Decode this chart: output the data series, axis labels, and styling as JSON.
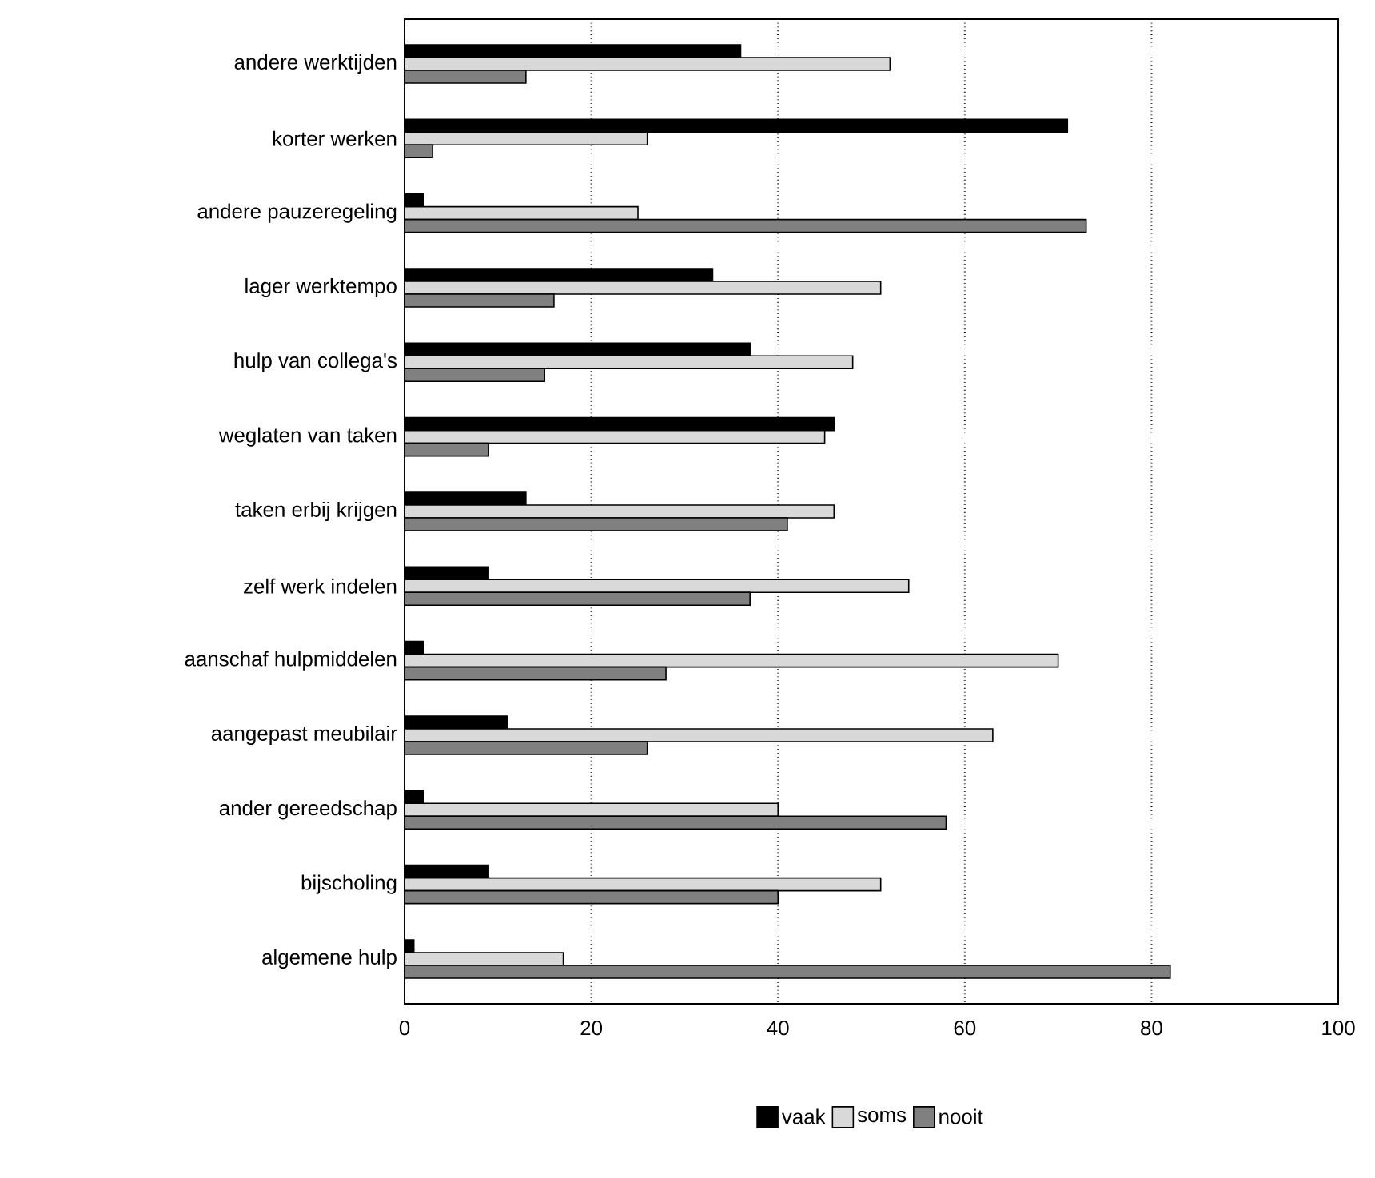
{
  "chart_data": {
    "type": "bar",
    "orientation": "horizontal",
    "categories": [
      "andere werktijden",
      "korter werken",
      "andere pauzeregeling",
      "lager werktempo",
      "hulp van collega's",
      "weglaten van taken",
      "taken erbij krijgen",
      "zelf werk indelen",
      "aanschaf hulpmiddelen",
      "aangepast meubilair",
      "ander gereedschap",
      "bijscholing",
      "algemene hulp"
    ],
    "series": [
      {
        "name": "vaak",
        "color": "#000000",
        "values": [
          36,
          71,
          2,
          33,
          37,
          46,
          13,
          9,
          2,
          11,
          2,
          9,
          1
        ]
      },
      {
        "name": "soms",
        "color": "#d9d9d9",
        "values": [
          52,
          26,
          25,
          51,
          48,
          45,
          46,
          54,
          70,
          63,
          40,
          51,
          17
        ]
      },
      {
        "name": "nooit",
        "color": "#808080",
        "values": [
          13,
          3,
          73,
          16,
          15,
          9,
          41,
          37,
          28,
          26,
          58,
          40,
          82
        ]
      }
    ],
    "xlim": [
      0,
      100
    ],
    "xticks": [
      0,
      20,
      40,
      60,
      80,
      100
    ],
    "grid": "x",
    "legend": "bottom"
  }
}
